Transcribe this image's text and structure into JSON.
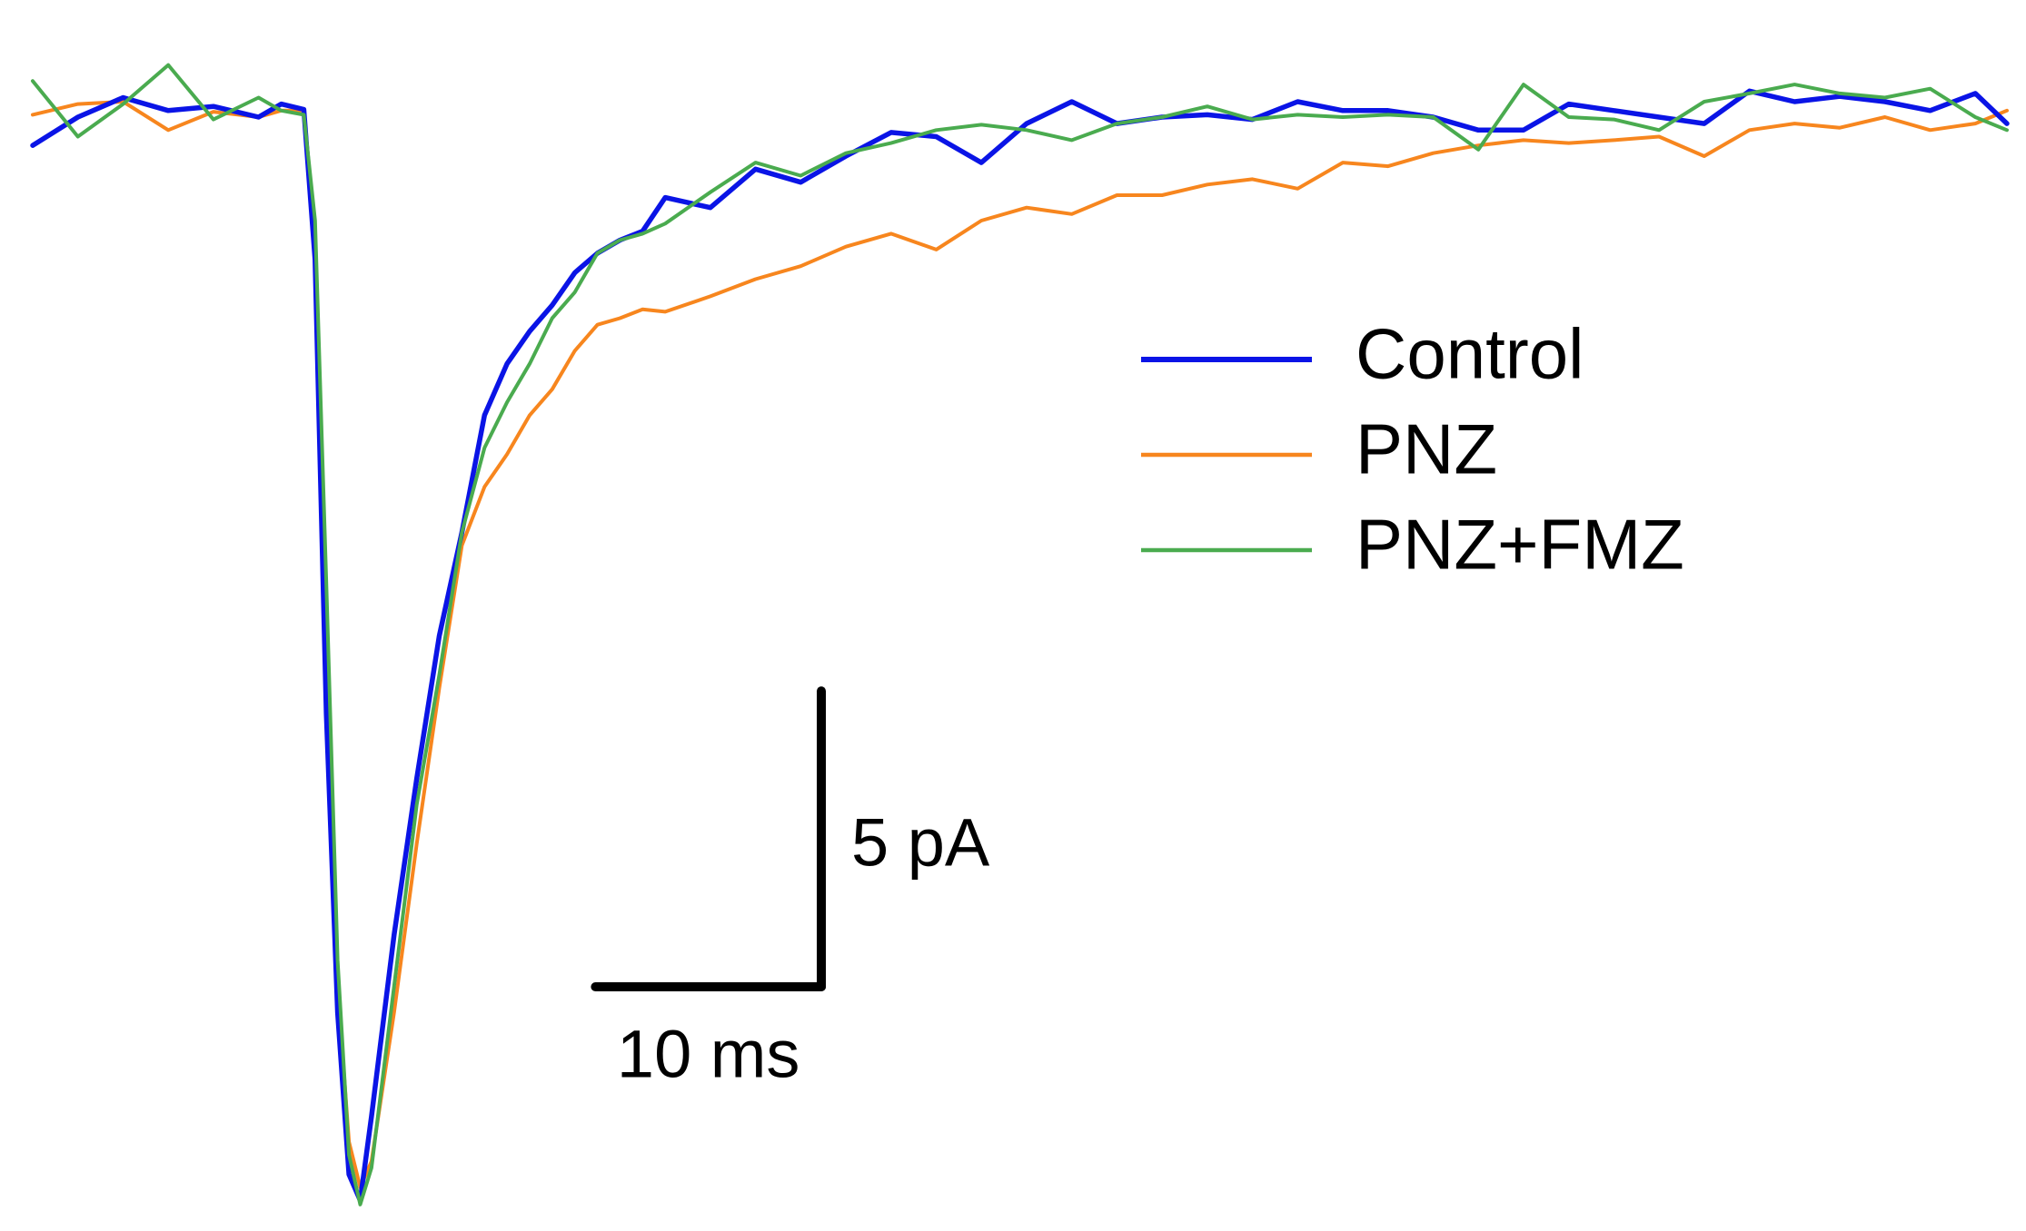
{
  "chart_data": {
    "type": "line",
    "x": [
      0,
      2,
      4,
      6,
      8,
      10,
      11,
      12,
      12.5,
      13,
      13.5,
      14,
      14.5,
      15,
      16,
      17,
      18,
      19,
      20,
      21,
      22,
      23,
      24,
      25,
      26,
      27,
      28,
      30,
      32,
      34,
      36,
      38,
      40,
      42,
      44,
      46,
      48,
      50,
      52,
      54,
      56,
      58,
      60,
      62,
      64,
      66,
      68,
      70,
      72,
      74,
      76,
      78,
      80,
      82,
      84,
      86,
      87.4
    ],
    "xlim": [
      0,
      87.4
    ],
    "ylim": [
      -18.6,
      1.7
    ],
    "series": [
      {
        "name": "Control",
        "color": "#0a14e6",
        "values": [
          -0.59,
          -0.11,
          0.22,
          0,
          0.07,
          -0.11,
          0.11,
          0.02,
          -2.52,
          -10.2,
          -15.24,
          -17.98,
          -18.42,
          -17.0,
          -13.93,
          -11.29,
          -8.88,
          -7.13,
          -5.15,
          -4.28,
          -3.73,
          -3.29,
          -2.74,
          -2.41,
          -2.19,
          -2.04,
          -1.47,
          -1.64,
          -0.99,
          -1.21,
          -0.77,
          -0.37,
          -0.44,
          -0.88,
          -0.22,
          0.15,
          -0.22,
          -0.11,
          -0.07,
          -0.15,
          0.15,
          0,
          0,
          -0.11,
          -0.33,
          -0.33,
          0.11,
          0,
          -0.11,
          -0.22,
          0.33,
          0.15,
          0.24,
          0.15,
          0,
          0.29,
          -0.22
        ]
      },
      {
        "name": "PNZ",
        "color": "#f7861e",
        "values": [
          -0.07,
          0.11,
          0.15,
          -0.33,
          -0.02,
          -0.11,
          0,
          0,
          -2.08,
          -9.1,
          -14.8,
          -17.43,
          -18.2,
          -17.76,
          -15.24,
          -12.39,
          -9.76,
          -7.35,
          -6.36,
          -5.81,
          -5.15,
          -4.71,
          -4.06,
          -3.62,
          -3.51,
          -3.36,
          -3.4,
          -3.14,
          -2.85,
          -2.63,
          -2.3,
          -2.08,
          -2.35,
          -1.86,
          -1.64,
          -1.75,
          -1.43,
          -1.43,
          -1.25,
          -1.16,
          -1.32,
          -0.88,
          -0.94,
          -0.72,
          -0.59,
          -0.5,
          -0.55,
          -0.5,
          -0.44,
          -0.77,
          -0.33,
          -0.22,
          -0.29,
          -0.11,
          -0.33,
          -0.22,
          0
        ]
      },
      {
        "name": "PNZ+FMZ",
        "color": "#4aab4f",
        "values": [
          0.5,
          -0.44,
          0.11,
          0.77,
          -0.15,
          0.22,
          0,
          -0.07,
          -1.86,
          -8.0,
          -14.36,
          -17.65,
          -18.49,
          -17.87,
          -14.8,
          -11.73,
          -9.54,
          -7.13,
          -5.7,
          -4.93,
          -4.28,
          -3.51,
          -3.07,
          -2.41,
          -2.19,
          -2.08,
          -1.91,
          -1.38,
          -0.88,
          -1.1,
          -0.72,
          -0.55,
          -0.33,
          -0.24,
          -0.33,
          -0.5,
          -0.22,
          -0.11,
          0.07,
          -0.15,
          -0.07,
          -0.11,
          -0.07,
          -0.11,
          -0.66,
          0.44,
          -0.11,
          -0.15,
          -0.33,
          0.15,
          0.29,
          0.44,
          0.29,
          0.22,
          0.37,
          -0.11,
          -0.33
        ]
      }
    ],
    "scale_bar": {
      "x": {
        "value": 10,
        "label": "10 ms"
      },
      "y": {
        "value": 5,
        "label": "5 pA"
      }
    }
  }
}
